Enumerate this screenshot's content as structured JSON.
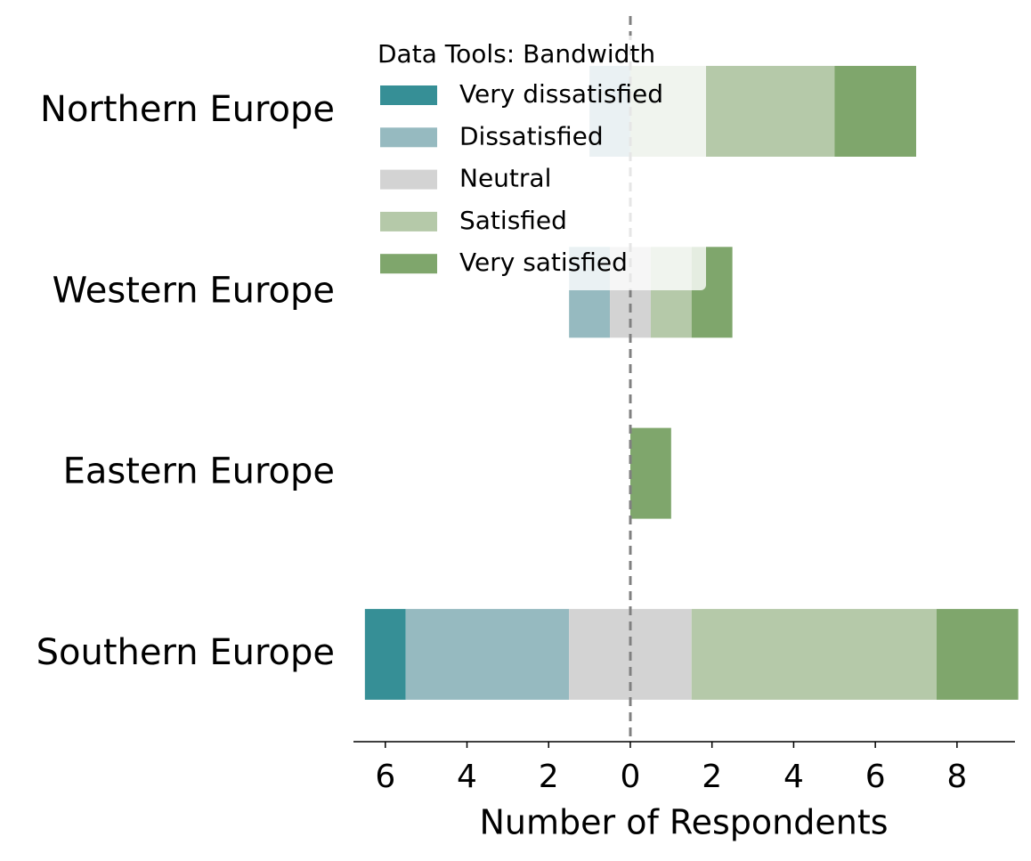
{
  "chart_data": {
    "type": "diverging-bar",
    "legend_title": "Data Tools: Bandwidth",
    "legend_position": "upper left",
    "x_label": "Number of Respondents",
    "categories": [
      "Northern Europe",
      "Western Europe",
      "Eastern Europe",
      "Southern Europe"
    ],
    "series": [
      {
        "name": "Very dissatisfied",
        "color": "#368f96",
        "values": [
          0,
          0,
          0,
          1
        ]
      },
      {
        "name": "Dissatisfied",
        "color": "#96bac0",
        "values": [
          1,
          1,
          0,
          4
        ]
      },
      {
        "name": "Neutral",
        "color": "#d3d3d3",
        "values": [
          0,
          1,
          0,
          3
        ]
      },
      {
        "name": "Satisfied",
        "color": "#b5c9a9",
        "values": [
          5,
          1,
          0,
          6
        ]
      },
      {
        "name": "Very satisfied",
        "color": "#7fa66c",
        "values": [
          2,
          1,
          1,
          2
        ]
      }
    ],
    "xlim": [
      -6.78,
      9.42
    ],
    "xticks": [
      {
        "value": -6,
        "label": "6"
      },
      {
        "value": -4,
        "label": "4"
      },
      {
        "value": -2,
        "label": "2"
      },
      0,
      2,
      4,
      6,
      8
    ]
  }
}
